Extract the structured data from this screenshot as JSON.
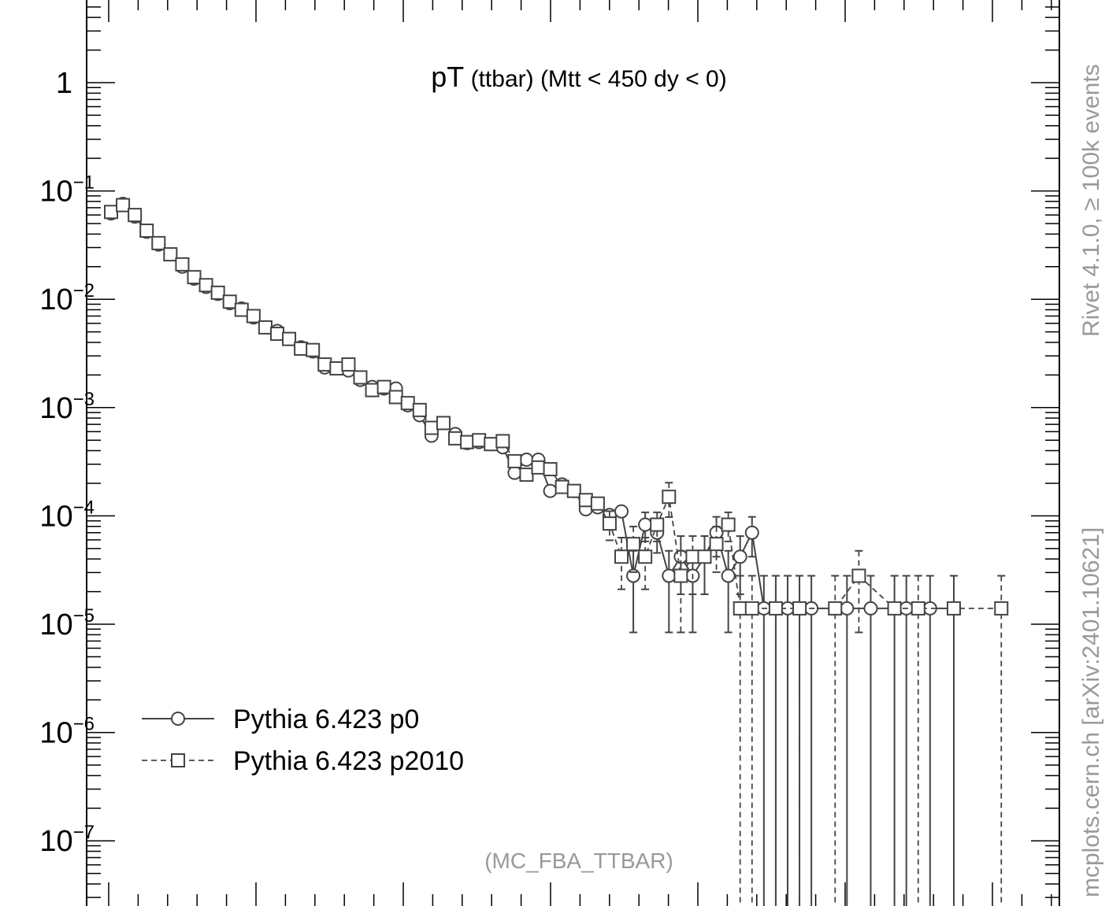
{
  "chart_data": {
    "type": "scatter",
    "title": "pT (ttbar) (Mtt < 450 dy < 0)",
    "title_main": "pT",
    "title_rest": " (ttbar) (Mtt < 450 dy < 0)",
    "analysis_label": "(MC_FBA_TTBAR)",
    "side_label_top": "Rivet 4.1.0, ≥ 100k events",
    "side_label_bottom": "mcplots.cern.ch [arXiv:2401.10621]",
    "y_scale": "log",
    "ylim": [
      2.6e-08,
      3.5
    ],
    "xlim": [
      -1,
      80
    ],
    "y_tick_labels": [
      {
        "value": 1,
        "base": "1",
        "exp": ""
      },
      {
        "value": 0.1,
        "base": "10",
        "exp": "−1"
      },
      {
        "value": 0.01,
        "base": "10",
        "exp": "−2"
      },
      {
        "value": 0.001,
        "base": "10",
        "exp": "−3"
      },
      {
        "value": 0.0001,
        "base": "10",
        "exp": "−4"
      },
      {
        "value": 1e-05,
        "base": "10",
        "exp": "−5"
      },
      {
        "value": 1e-06,
        "base": "10",
        "exp": "−6"
      },
      {
        "value": 1e-07,
        "base": "10",
        "exp": "−7"
      }
    ],
    "legend_position": "bottom-left",
    "series": [
      {
        "name": "Pythia 6.423 p0",
        "marker": "circle",
        "line": "solid",
        "points": [
          [
            0,
            0.062
          ],
          [
            1,
            0.076
          ],
          [
            2,
            0.058
          ],
          [
            3,
            0.042
          ],
          [
            4,
            0.032
          ],
          [
            5,
            0.026
          ],
          [
            6,
            0.02
          ],
          [
            7,
            0.0155
          ],
          [
            8,
            0.013
          ],
          [
            9,
            0.0112
          ],
          [
            10,
            0.0092
          ],
          [
            11,
            0.0082
          ],
          [
            12,
            0.0068
          ],
          [
            13,
            0.0055
          ],
          [
            14,
            0.0051
          ],
          [
            15,
            0.0043
          ],
          [
            16,
            0.0036
          ],
          [
            17,
            0.0033
          ],
          [
            18,
            0.00235
          ],
          [
            19,
            0.0023
          ],
          [
            20,
            0.0022
          ],
          [
            21,
            0.0018
          ],
          [
            22,
            0.00155
          ],
          [
            23,
            0.0015
          ],
          [
            24,
            0.0015
          ],
          [
            25,
            0.00105
          ],
          [
            26,
            0.00085
          ],
          [
            27,
            0.00055
          ],
          [
            28,
            0.00072
          ],
          [
            29,
            0.00057
          ],
          [
            30,
            0.00047
          ],
          [
            31,
            0.00048
          ],
          [
            32,
            0.00046
          ],
          [
            33,
            0.00043
          ],
          [
            34,
            0.00025
          ],
          [
            35,
            0.00033
          ],
          [
            36,
            0.00033
          ],
          [
            37,
            0.00017
          ],
          [
            38,
            0.000195
          ],
          [
            39,
            0.00017
          ],
          [
            40,
            0.000115
          ],
          [
            41,
            0.00012
          ],
          [
            42,
            0.000102
          ],
          [
            43,
            0.00011
          ],
          [
            44,
            2.8e-05
          ],
          [
            45,
            8.3e-05
          ],
          [
            46,
            7e-05
          ],
          [
            47,
            2.8e-05
          ],
          [
            48,
            4.2e-05
          ],
          [
            49,
            2.8e-05
          ],
          [
            50,
            4.2e-05
          ],
          [
            51,
            7e-05
          ],
          [
            52,
            2.8e-05
          ],
          [
            53,
            4.2e-05
          ],
          [
            54,
            7e-05
          ],
          [
            55,
            1.4e-05
          ],
          [
            56,
            1.4e-05
          ],
          [
            57,
            1.4e-05
          ],
          [
            58,
            1.4e-05
          ],
          [
            59,
            1.4e-05
          ],
          [
            62,
            1.4e-05
          ],
          [
            64,
            1.4e-05
          ],
          [
            66,
            1.4e-05
          ],
          [
            67,
            1.4e-05
          ],
          [
            69,
            1.4e-05
          ],
          [
            71,
            1.4e-05
          ]
        ],
        "errors": [
          [
            44,
            0.7
          ],
          [
            45,
            0.3
          ],
          [
            46,
            0.35
          ],
          [
            47,
            0.7
          ],
          [
            48,
            0.55
          ],
          [
            49,
            0.7
          ],
          [
            50,
            0.55
          ],
          [
            51,
            0.4
          ],
          [
            52,
            0.7
          ],
          [
            53,
            0.55
          ],
          [
            54,
            0.4
          ],
          [
            55,
            1
          ],
          [
            56,
            1
          ],
          [
            57,
            1
          ],
          [
            58,
            1
          ],
          [
            59,
            1
          ],
          [
            62,
            1
          ],
          [
            64,
            1
          ],
          [
            66,
            1
          ],
          [
            67,
            1
          ],
          [
            69,
            1
          ],
          [
            71,
            1
          ]
        ]
      },
      {
        "name": "Pythia 6.423 p2010",
        "marker": "square",
        "line": "dashed",
        "points": [
          [
            0,
            0.064
          ],
          [
            1,
            0.074
          ],
          [
            2,
            0.06
          ],
          [
            3,
            0.043
          ],
          [
            4,
            0.033
          ],
          [
            5,
            0.026
          ],
          [
            6,
            0.021
          ],
          [
            7,
            0.016
          ],
          [
            8,
            0.0135
          ],
          [
            9,
            0.0115
          ],
          [
            10,
            0.0095
          ],
          [
            11,
            0.008
          ],
          [
            12,
            0.007
          ],
          [
            13,
            0.0055
          ],
          [
            14,
            0.0048
          ],
          [
            15,
            0.0043
          ],
          [
            16,
            0.0035
          ],
          [
            17,
            0.0034
          ],
          [
            18,
            0.0025
          ],
          [
            19,
            0.0023
          ],
          [
            20,
            0.0025
          ],
          [
            21,
            0.0019
          ],
          [
            22,
            0.00145
          ],
          [
            23,
            0.00155
          ],
          [
            24,
            0.00125
          ],
          [
            25,
            0.0011
          ],
          [
            26,
            0.00095
          ],
          [
            27,
            0.00065
          ],
          [
            28,
            0.00072
          ],
          [
            29,
            0.00052
          ],
          [
            30,
            0.00048
          ],
          [
            31,
            0.0005
          ],
          [
            32,
            0.00046
          ],
          [
            33,
            0.00049
          ],
          [
            34,
            0.00032
          ],
          [
            35,
            0.00024
          ],
          [
            36,
            0.00028
          ],
          [
            37,
            0.00027
          ],
          [
            38,
            0.000185
          ],
          [
            39,
            0.00017
          ],
          [
            40,
            0.00014
          ],
          [
            41,
            0.00013
          ],
          [
            42,
            8.5e-05
          ],
          [
            43,
            4.2e-05
          ],
          [
            44,
            5.5e-05
          ],
          [
            45,
            4.2e-05
          ],
          [
            46,
            8.3e-05
          ],
          [
            47,
            0.00015
          ],
          [
            48,
            2.8e-05
          ],
          [
            49,
            4.2e-05
          ],
          [
            50,
            4.2e-05
          ],
          [
            51,
            5.5e-05
          ],
          [
            52,
            8.3e-05
          ],
          [
            53,
            1.4e-05
          ],
          [
            54,
            1.4e-05
          ],
          [
            56,
            1.4e-05
          ],
          [
            58,
            1.4e-05
          ],
          [
            61,
            1.4e-05
          ],
          [
            63,
            2.8e-05
          ],
          [
            66,
            1.4e-05
          ],
          [
            68,
            1.4e-05
          ],
          [
            71,
            1.4e-05
          ],
          [
            75,
            1.4e-05
          ]
        ],
        "errors": [
          [
            42,
            0.3
          ],
          [
            43,
            0.5
          ],
          [
            44,
            0.45
          ],
          [
            45,
            0.5
          ],
          [
            46,
            0.3
          ],
          [
            47,
            0.35
          ],
          [
            48,
            0.7
          ],
          [
            49,
            0.55
          ],
          [
            50,
            0.55
          ],
          [
            51,
            0.45
          ],
          [
            52,
            0.3
          ],
          [
            53,
            1
          ],
          [
            54,
            1
          ],
          [
            56,
            1
          ],
          [
            58,
            1
          ],
          [
            61,
            1
          ],
          [
            63,
            0.7
          ],
          [
            66,
            1
          ],
          [
            68,
            1
          ],
          [
            71,
            1
          ],
          [
            75,
            1
          ]
        ]
      }
    ]
  }
}
